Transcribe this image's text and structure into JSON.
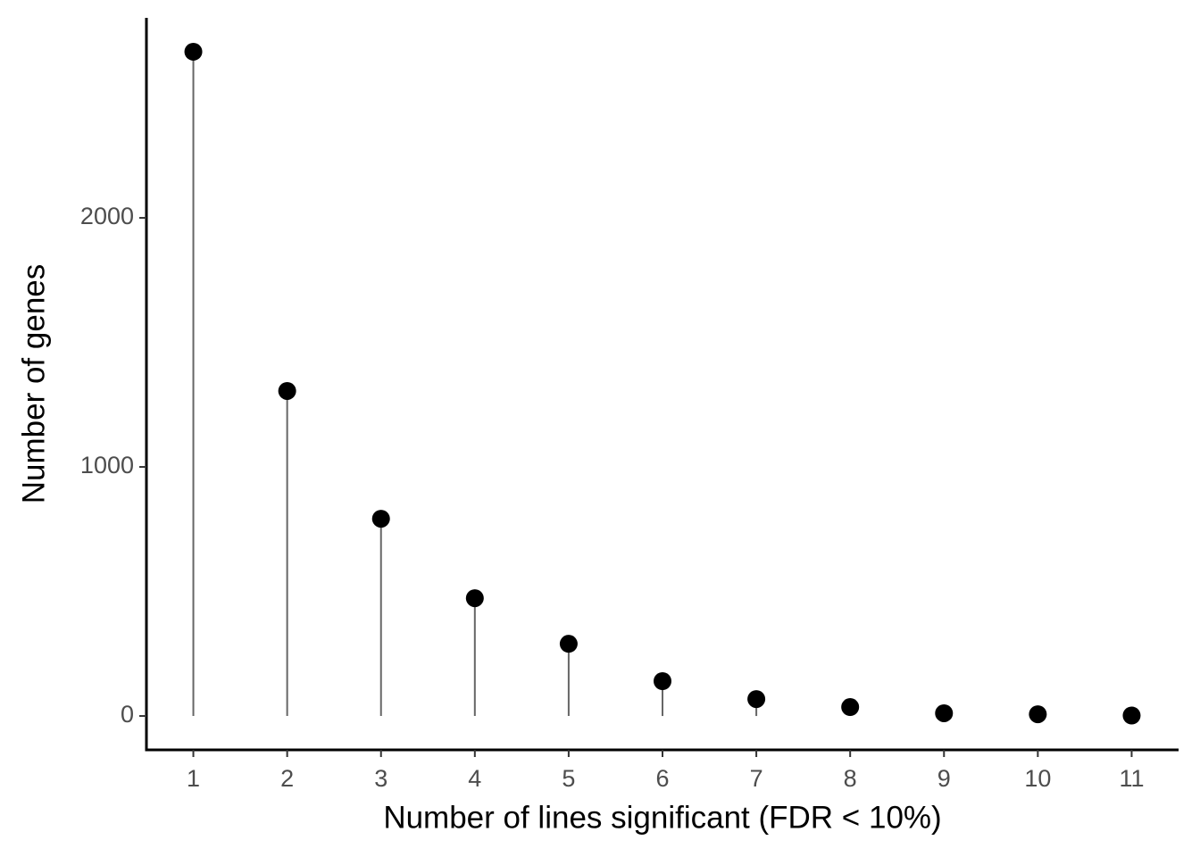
{
  "chart_data": {
    "type": "lollipop",
    "x_label": "Number of lines significant (FDR < 10%)",
    "y_label": "Number of genes",
    "x": [
      1,
      2,
      3,
      4,
      5,
      6,
      7,
      8,
      9,
      10,
      11
    ],
    "values": [
      2667,
      1305,
      792,
      473,
      290,
      140,
      68,
      36,
      11,
      7,
      2
    ],
    "color": "#000000",
    "stem_color": "#666666",
    "xlim": [
      0.5,
      11.5
    ],
    "xticks": [
      1,
      2,
      3,
      4,
      5,
      6,
      7,
      8,
      9,
      10,
      11
    ],
    "ylim": [
      -136,
      2803
    ],
    "yticks": [
      0,
      1000,
      2000
    ],
    "grid": false
  }
}
